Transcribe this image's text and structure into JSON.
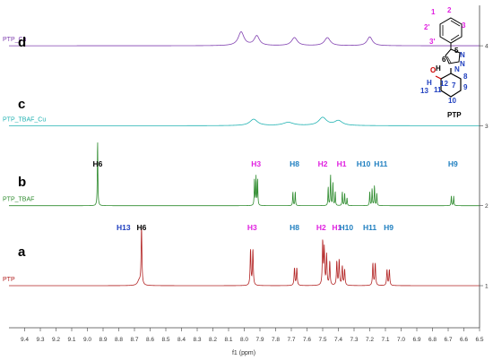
{
  "chart_data": {
    "type": "line",
    "xlabel": "f1 (ppm)",
    "x_reversed": true,
    "xlim": [
      9.5,
      6.5
    ],
    "x_ticks": [
      "9.4",
      "9.3",
      "9.2",
      "9.1",
      "9.0",
      "8.9",
      "8.8",
      "8.7",
      "8.6",
      "8.5",
      "8.4",
      "8.3",
      "8.2",
      "8.1",
      "8.0",
      "7.9",
      "7.8",
      "7.7",
      "7.6",
      "7.5",
      "7.4",
      "7.3",
      "7.2",
      "7.1",
      "7.0",
      "6.9",
      "6.8",
      "6.7",
      "6.6",
      "6.5"
    ],
    "y_ticks": [
      "1",
      "2",
      "3",
      "4"
    ],
    "series": [
      {
        "name": "PTP",
        "panel": "a",
        "color": "#b22222",
        "baseline": 1,
        "peaks": [
          {
            "ppm": 8.67,
            "height": 0.06,
            "width": 0.012
          },
          {
            "ppm": 8.655,
            "height": 0.72,
            "width": 0.003
          },
          {
            "ppm": 7.96,
            "height": 0.45,
            "width": 0.003
          },
          {
            "ppm": 7.945,
            "height": 0.45,
            "width": 0.003
          },
          {
            "ppm": 7.68,
            "height": 0.22,
            "width": 0.003
          },
          {
            "ppm": 7.665,
            "height": 0.22,
            "width": 0.003
          },
          {
            "ppm": 7.5,
            "height": 0.55,
            "width": 0.003
          },
          {
            "ppm": 7.49,
            "height": 0.45,
            "width": 0.003
          },
          {
            "ppm": 7.475,
            "height": 0.38,
            "width": 0.003
          },
          {
            "ppm": 7.455,
            "height": 0.3,
            "width": 0.003
          },
          {
            "ppm": 7.41,
            "height": 0.3,
            "width": 0.003
          },
          {
            "ppm": 7.395,
            "height": 0.32,
            "width": 0.003
          },
          {
            "ppm": 7.375,
            "height": 0.24,
            "width": 0.003
          },
          {
            "ppm": 7.36,
            "height": 0.2,
            "width": 0.003
          },
          {
            "ppm": 7.18,
            "height": 0.28,
            "width": 0.003
          },
          {
            "ppm": 7.165,
            "height": 0.28,
            "width": 0.003
          },
          {
            "ppm": 7.09,
            "height": 0.2,
            "width": 0.003
          },
          {
            "ppm": 7.075,
            "height": 0.2,
            "width": 0.003
          }
        ],
        "labels": [
          {
            "text": "H13",
            "ppm": 8.77,
            "color": "#1f3fbf"
          },
          {
            "text": "H6",
            "ppm": 8.655,
            "color": "#000000"
          },
          {
            "text": "H3",
            "ppm": 7.95,
            "color": "#e020e0"
          },
          {
            "text": "H8",
            "ppm": 7.68,
            "color": "#1f7fc0"
          },
          {
            "text": "H2",
            "ppm": 7.51,
            "color": "#e020e0"
          },
          {
            "text": "H1",
            "ppm": 7.41,
            "color": "#e020e0"
          },
          {
            "text": "H10",
            "ppm": 7.35,
            "color": "#1f7fc0"
          },
          {
            "text": "H11",
            "ppm": 7.2,
            "color": "#1f7fc0"
          },
          {
            "text": "H9",
            "ppm": 7.08,
            "color": "#1f7fc0"
          }
        ]
      },
      {
        "name": "PTP_TBAF",
        "panel": "b",
        "color": "#2e8b2e",
        "baseline": 2,
        "peaks": [
          {
            "ppm": 8.935,
            "height": 0.84,
            "width": 0.002
          },
          {
            "ppm": 7.935,
            "height": 0.34,
            "width": 0.002
          },
          {
            "ppm": 7.925,
            "height": 0.36,
            "width": 0.002
          },
          {
            "ppm": 7.915,
            "height": 0.34,
            "width": 0.002
          },
          {
            "ppm": 7.69,
            "height": 0.18,
            "width": 0.002
          },
          {
            "ppm": 7.675,
            "height": 0.18,
            "width": 0.002
          },
          {
            "ppm": 7.465,
            "height": 0.24,
            "width": 0.002
          },
          {
            "ppm": 7.45,
            "height": 0.4,
            "width": 0.002
          },
          {
            "ppm": 7.435,
            "height": 0.3,
            "width": 0.002
          },
          {
            "ppm": 7.42,
            "height": 0.18,
            "width": 0.002
          },
          {
            "ppm": 7.375,
            "height": 0.18,
            "width": 0.002
          },
          {
            "ppm": 7.36,
            "height": 0.16,
            "width": 0.002
          },
          {
            "ppm": 7.345,
            "height": 0.1,
            "width": 0.002
          },
          {
            "ppm": 7.2,
            "height": 0.18,
            "width": 0.002
          },
          {
            "ppm": 7.185,
            "height": 0.22,
            "width": 0.002
          },
          {
            "ppm": 7.17,
            "height": 0.26,
            "width": 0.002
          },
          {
            "ppm": 7.155,
            "height": 0.16,
            "width": 0.002
          },
          {
            "ppm": 6.68,
            "height": 0.12,
            "width": 0.002
          },
          {
            "ppm": 6.665,
            "height": 0.12,
            "width": 0.002
          }
        ],
        "labels": [
          {
            "text": "H6",
            "ppm": 8.935,
            "color": "#000000"
          },
          {
            "text": "H3",
            "ppm": 7.925,
            "color": "#e020e0"
          },
          {
            "text": "H8",
            "ppm": 7.68,
            "color": "#1f7fc0"
          },
          {
            "text": "H2",
            "ppm": 7.5,
            "color": "#e020e0"
          },
          {
            "text": "H1",
            "ppm": 7.38,
            "color": "#e020e0"
          },
          {
            "text": "H10",
            "ppm": 7.24,
            "color": "#1f7fc0"
          },
          {
            "text": "H11",
            "ppm": 7.13,
            "color": "#1f7fc0"
          },
          {
            "text": "H9",
            "ppm": 6.67,
            "color": "#1f7fc0"
          }
        ]
      },
      {
        "name": "PTP_TBAF_Cu",
        "panel": "c",
        "color": "#20b2b2",
        "baseline": 3,
        "peaks": [
          {
            "ppm": 7.94,
            "height": 0.08,
            "width": 0.03
          },
          {
            "ppm": 7.72,
            "height": 0.04,
            "width": 0.04
          },
          {
            "ppm": 7.5,
            "height": 0.1,
            "width": 0.03
          },
          {
            "ppm": 7.4,
            "height": 0.06,
            "width": 0.03
          }
        ],
        "labels": []
      },
      {
        "name": "PTP_Cu",
        "panel": "d",
        "color": "#8040b0",
        "baseline": 4,
        "peaks": [
          {
            "ppm": 8.02,
            "height": 0.17,
            "width": 0.022
          },
          {
            "ppm": 7.92,
            "height": 0.12,
            "width": 0.02
          },
          {
            "ppm": 7.68,
            "height": 0.1,
            "width": 0.022
          },
          {
            "ppm": 7.47,
            "height": 0.1,
            "width": 0.022
          },
          {
            "ppm": 7.2,
            "height": 0.11,
            "width": 0.02
          }
        ],
        "labels": []
      }
    ]
  },
  "structure": {
    "name": "PTP",
    "phenyl_numbers": [
      "1",
      "2",
      "3",
      "3'",
      "2'"
    ],
    "core_numbers": [
      "5",
      "6",
      "7",
      "8",
      "9",
      "10",
      "11",
      "12",
      "13"
    ],
    "atoms": [
      "N",
      "N",
      "N",
      "N",
      "O",
      "H",
      "H"
    ],
    "colors": {
      "phenyl": "#e020e0",
      "ring": "#1f3fbf",
      "oxygen": "#cc0000",
      "bond": "#000000"
    }
  }
}
